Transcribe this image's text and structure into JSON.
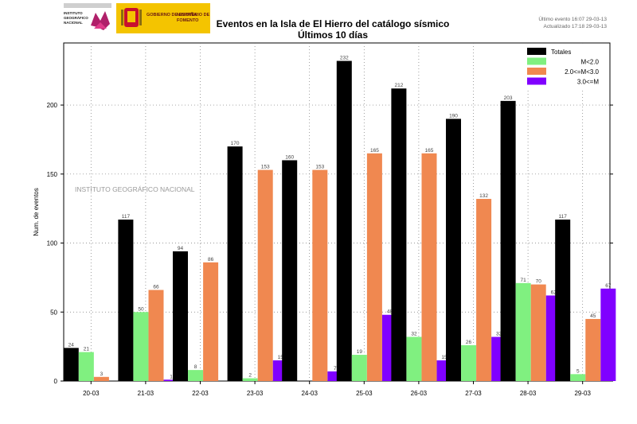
{
  "header": {
    "ign_logo_text": "INSTITUTO GEOGRÁFICO NACIONAL",
    "gov_line1": "GOBIERNO DE ESPAÑA",
    "gov_line2": "MINISTERIO DE FOMENTO",
    "last_event": "Último evento 16:07 29-03-13",
    "updated": "Actualizado   17:18  29-03-13"
  },
  "chart_data": {
    "type": "bar",
    "title": "Eventos en la Isla de El Hierro del catálogo sísmico",
    "subtitle": "Últimos 10 días",
    "xlabel": "",
    "ylabel": "Num. de eventos",
    "ylim": [
      0,
      245
    ],
    "yticks": [
      0,
      50,
      100,
      150,
      200
    ],
    "grid": true,
    "watermark": "INSTITUTO GEOGRÁFICO NACIONAL",
    "legend_position": "top-right",
    "categories": [
      "20-03",
      "21-03",
      "22-03",
      "23-03",
      "24-03",
      "25-03",
      "26-03",
      "27-03",
      "28-03",
      "29-03"
    ],
    "series": [
      {
        "name": "Totales",
        "color": "#000000",
        "values": [
          24,
          117,
          94,
          170,
          160,
          232,
          212,
          190,
          203,
          117
        ],
        "labels": [
          "24",
          "117",
          "94",
          "170",
          "160",
          "232",
          "212",
          "190",
          "203",
          "117"
        ]
      },
      {
        "name": "M<2.0",
        "color": "#80f080",
        "values": [
          21,
          50,
          8,
          2,
          0,
          19,
          32,
          26,
          71,
          5
        ],
        "labels": [
          "21",
          "50",
          "8",
          "2",
          "",
          "19",
          "32",
          "26",
          "71",
          "5"
        ]
      },
      {
        "name": "2.0<=M<3.0",
        "color": "#f08850",
        "values": [
          3,
          66,
          86,
          153,
          153,
          165,
          165,
          132,
          70,
          45
        ],
        "labels": [
          "3",
          "66",
          "86",
          "153",
          "153",
          "165",
          "165",
          "132",
          "70",
          "45"
        ]
      },
      {
        "name": "3.0<=M",
        "color": "#8000ff",
        "values": [
          0,
          1,
          0,
          15,
          7,
          48,
          15,
          32,
          62,
          67
        ],
        "labels": [
          "",
          "1",
          "",
          "15",
          "7",
          "48",
          "15",
          "32",
          "62",
          "67"
        ]
      }
    ]
  }
}
